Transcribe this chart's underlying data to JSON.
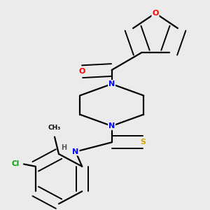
{
  "background_color": "#ebebeb",
  "bond_color": "#000000",
  "atom_colors": {
    "O": "#ff0000",
    "N": "#0000ff",
    "S": "#ccaa00",
    "Cl": "#00aa00",
    "C": "#000000",
    "H": "#555555"
  }
}
